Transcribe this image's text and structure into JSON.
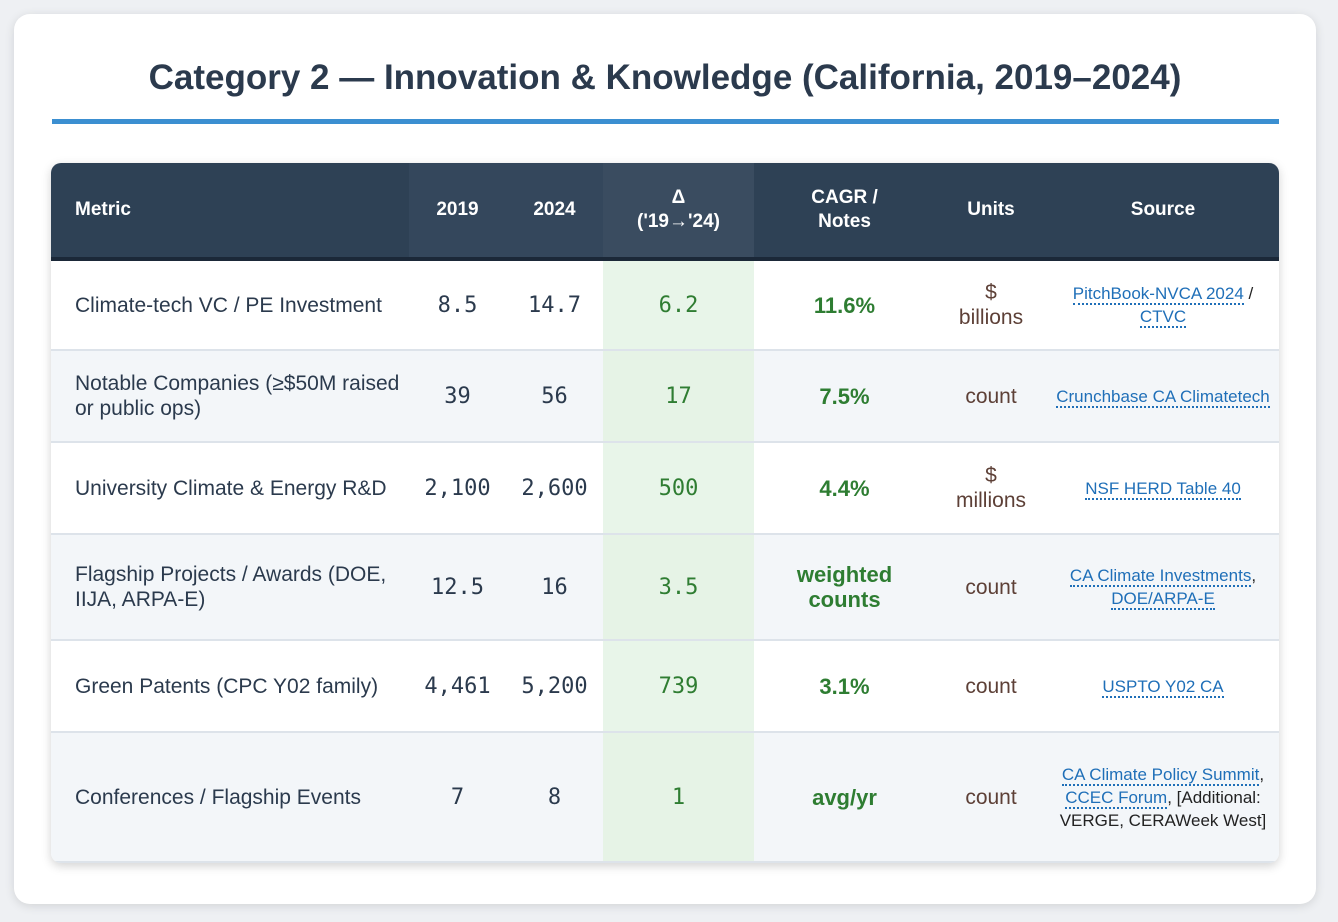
{
  "title": "Category 2 — Innovation & Knowledge (California, 2019–2024)",
  "headers": {
    "metric": "Metric",
    "y2019": "2019",
    "y2024": "2024",
    "delta_line1": "Δ",
    "delta_line2": "('19→'24)",
    "cagr_line1": "CAGR /",
    "cagr_line2": "Notes",
    "units": "Units",
    "source": "Source"
  },
  "rows": [
    {
      "metric": "Climate-tech VC / PE Investment",
      "y2019": "8.5",
      "y2024": "14.7",
      "delta": "6.2",
      "cagr": "11.6%",
      "units_line1": "$",
      "units_line2": "billions",
      "sources": [
        {
          "text": "PitchBook-NVCA 2024",
          "link": true
        },
        {
          "text": " / ",
          "link": false
        },
        {
          "text": "CTVC",
          "link": true
        }
      ]
    },
    {
      "metric": "Notable Companies (≥$50M raised or public ops)",
      "y2019": "39",
      "y2024": "56",
      "delta": "17",
      "cagr": "7.5%",
      "units_line1": "count",
      "units_line2": "",
      "sources": [
        {
          "text": "Crunchbase CA Climatetech",
          "link": true
        }
      ]
    },
    {
      "metric": "University Climate & Energy R&D",
      "y2019": "2,100",
      "y2024": "2,600",
      "delta": "500",
      "cagr": "4.4%",
      "units_line1": "$",
      "units_line2": "millions",
      "sources": [
        {
          "text": "NSF HERD Table 40",
          "link": true
        }
      ]
    },
    {
      "metric": "Flagship Projects / Awards (DOE, IIJA, ARPA-E)",
      "y2019": "12.5",
      "y2024": "16",
      "delta": "3.5",
      "cagr": "weighted counts",
      "units_line1": "count",
      "units_line2": "",
      "sources": [
        {
          "text": "CA Climate Investments",
          "link": true
        },
        {
          "text": ", ",
          "link": false
        },
        {
          "text": "DOE/ARPA-E",
          "link": true
        }
      ]
    },
    {
      "metric": "Green Patents (CPC Y02 family)",
      "y2019": "4,461",
      "y2024": "5,200",
      "delta": "739",
      "cagr": "3.1%",
      "units_line1": "count",
      "units_line2": "",
      "sources": [
        {
          "text": "USPTO Y02 CA",
          "link": true
        }
      ]
    },
    {
      "metric": "Conferences / Flagship Events",
      "y2019": "7",
      "y2024": "8",
      "delta": "1",
      "cagr": "avg/yr",
      "units_line1": "count",
      "units_line2": "",
      "sources": [
        {
          "text": "CA Climate Policy Summit",
          "link": true
        },
        {
          "text": ", ",
          "link": false
        },
        {
          "text": "CCEC Forum",
          "link": true
        },
        {
          "text": ", [Additional: VERGE, CERAWeek West]",
          "link": false
        }
      ]
    }
  ],
  "colors": {
    "header_bg": "#2e4155",
    "accent_rule": "#3b8fd1",
    "delta_green": "#2f7d32",
    "link_blue": "#1f6fb8",
    "units_brown": "#5d4037"
  }
}
